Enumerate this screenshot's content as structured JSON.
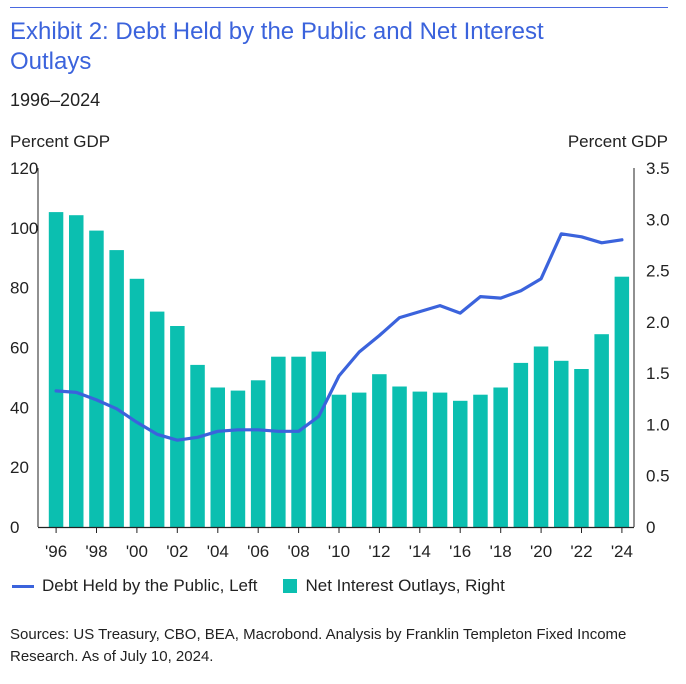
{
  "header": {
    "title": "Exhibit 2: Debt Held by the Public and Net Interest Outlays",
    "subtitle": "1996–2024",
    "left_unit": "Percent GDP",
    "right_unit": "Percent GDP"
  },
  "legend": {
    "line_label": "Debt Held by the Public, Left",
    "bar_label": "Net Interest Outlays, Right"
  },
  "footer": {
    "source": "Sources: US Treasury, CBO, BEA, Macrobond. Analysis by Franklin Templeton Fixed Income Research. As of July 10, 2024."
  },
  "colors": {
    "line": "#3b63dc",
    "bars": "#0bbfb0",
    "title": "#3b63dc"
  },
  "chart_data": {
    "type": "bar",
    "x": [
      1996,
      1997,
      1998,
      1999,
      2000,
      2001,
      2002,
      2003,
      2004,
      2005,
      2006,
      2007,
      2008,
      2009,
      2010,
      2011,
      2012,
      2013,
      2014,
      2015,
      2016,
      2017,
      2018,
      2019,
      2020,
      2021,
      2022,
      2023,
      2024
    ],
    "x_tick_labels": [
      "'96",
      "'98",
      "'00",
      "'02",
      "'04",
      "'06",
      "'08",
      "'10",
      "'12",
      "'14",
      "'16",
      "'18",
      "'20",
      "'22",
      "'24"
    ],
    "series": [
      {
        "name": "Net Interest Outlays, Right",
        "type": "bar",
        "axis": "right",
        "values": [
          3.07,
          3.04,
          2.89,
          2.7,
          2.42,
          2.1,
          1.96,
          1.58,
          1.36,
          1.33,
          1.43,
          1.66,
          1.66,
          1.71,
          1.29,
          1.31,
          1.49,
          1.37,
          1.32,
          1.31,
          1.23,
          1.29,
          1.36,
          1.6,
          1.76,
          1.62,
          1.54,
          1.88,
          2.44
        ]
      },
      {
        "name": "Debt Held by the Public, Left",
        "type": "line",
        "axis": "left",
        "values": [
          45.5,
          45,
          42.5,
          39.5,
          35,
          31,
          29,
          30,
          32,
          32.5,
          32.5,
          32,
          32,
          37,
          50.5,
          58.5,
          64,
          70,
          72,
          74,
          71.5,
          77,
          76.5,
          79,
          83,
          98,
          97,
          95,
          96
        ]
      }
    ],
    "left_axis": {
      "label": "Percent GDP",
      "ticks": [
        "120",
        "100",
        "80",
        "60",
        "40",
        "20",
        "0"
      ],
      "ylim": [
        0,
        120
      ]
    },
    "right_axis": {
      "label": "Percent GDP",
      "ticks": [
        "3.5",
        "3.0",
        "2.5",
        "2.0",
        "1.5",
        "1.0",
        "0.5",
        "0"
      ],
      "ylim": [
        0,
        3.5
      ]
    },
    "grid": false,
    "legend_position": "bottom-left"
  }
}
